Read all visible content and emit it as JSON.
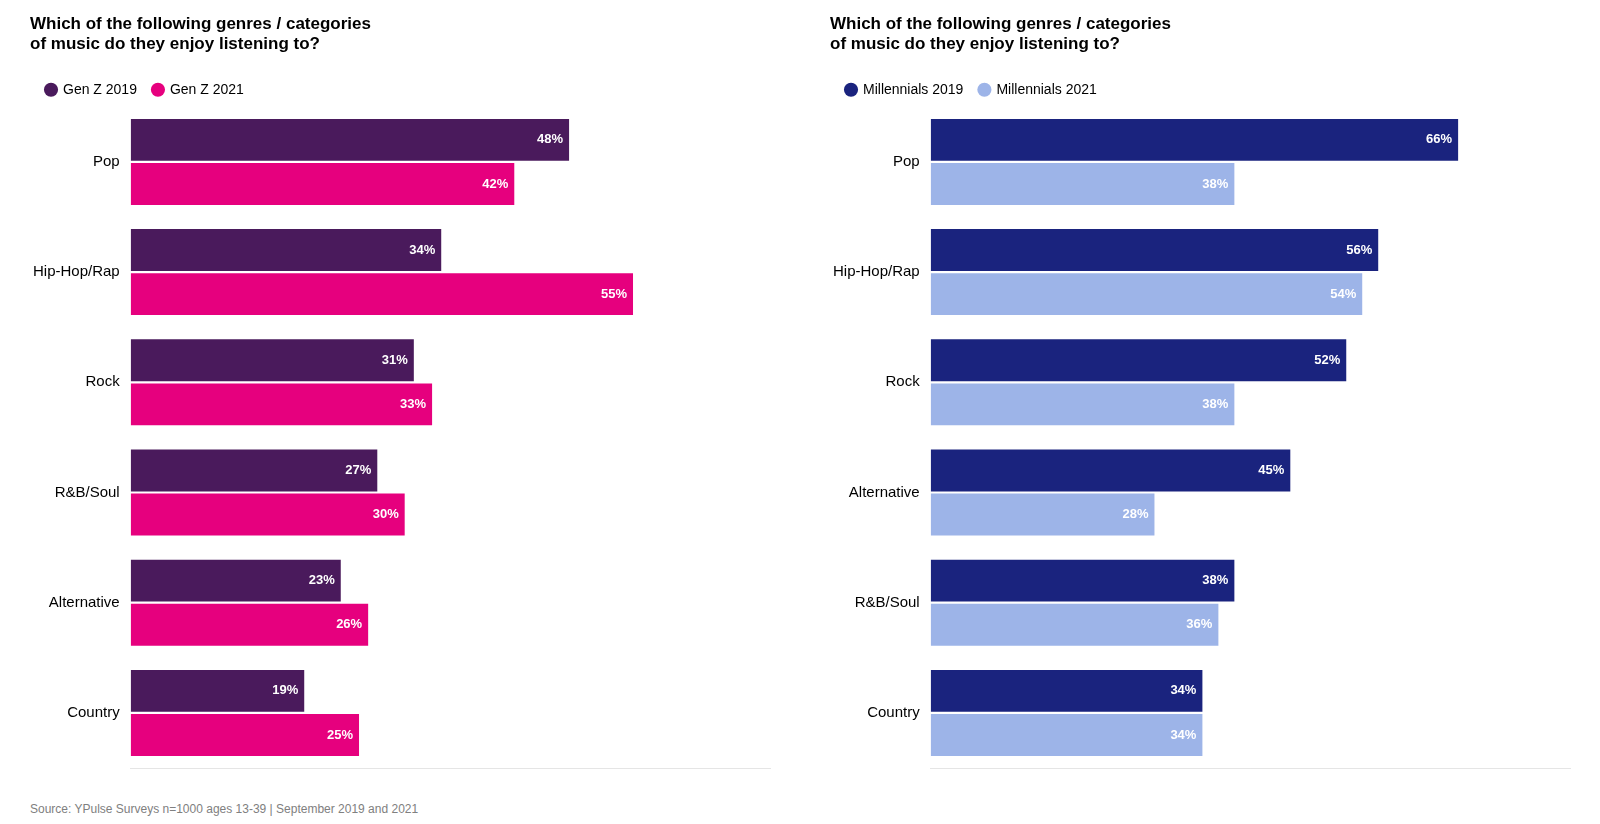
{
  "chart_data": [
    {
      "type": "bar",
      "orientation": "horizontal",
      "title": "Which of the following genres / categories\nof music do they enjoy listening to?",
      "categories": [
        "Pop",
        "Hip-Hop/Rap",
        "Rock",
        "R&B/Soul",
        "Alternative",
        "Country"
      ],
      "series": [
        {
          "name": "Gen Z 2019",
          "color": "#4a1a5c",
          "values": [
            48,
            34,
            31,
            27,
            23,
            19
          ],
          "value_labels": [
            "48%",
            "34%",
            "31%",
            "27%",
            "23%",
            "19%"
          ]
        },
        {
          "name": "Gen Z 2021",
          "color": "#e6007e",
          "values": [
            42,
            55,
            33,
            30,
            26,
            25
          ],
          "value_labels": [
            "42%",
            "55%",
            "33%",
            "30%",
            "26%",
            "25%"
          ]
        }
      ],
      "xlim": [
        0,
        70
      ],
      "grid": false,
      "legend": "upper left",
      "data_labels": true,
      "tick_labels": "y"
    },
    {
      "type": "bar",
      "orientation": "horizontal",
      "title": "Which of the following genres / categories\nof music do they enjoy listening to?",
      "categories": [
        "Pop",
        "Hip-Hop/Rap",
        "Rock",
        "Alternative",
        "R&B/Soul",
        "Country"
      ],
      "series": [
        {
          "name": "Millennials 2019",
          "color": "#1a237e",
          "values": [
            66,
            56,
            52,
            45,
            38,
            34
          ],
          "value_labels": [
            "66%",
            "56%",
            "52%",
            "45%",
            "38%",
            "34%"
          ]
        },
        {
          "name": "Millennials 2021",
          "color": "#9db4e8",
          "values": [
            38,
            54,
            38,
            28,
            36,
            34
          ],
          "value_labels": [
            "38%",
            "54%",
            "38%",
            "28%",
            "36%",
            "34%"
          ]
        }
      ],
      "xlim": [
        0,
        80
      ],
      "grid": false,
      "legend": "upper left",
      "data_labels": true,
      "tick_labels": "y"
    }
  ],
  "source": "Source: YPulse Surveys n=1000 ages 13-39 | September 2019 and 2021"
}
